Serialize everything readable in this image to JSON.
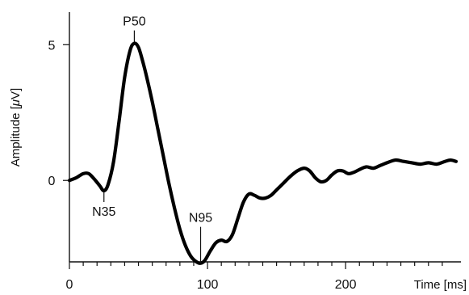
{
  "chart_data": {
    "type": "line",
    "title": "",
    "xlabel": "Time [ms]",
    "ylabel_prefix": "Amplitude [",
    "ylabel_mu": "μ",
    "ylabel_suffix": "V]",
    "xlim": [
      0,
      280
    ],
    "ylim": [
      -3.0,
      6.2
    ],
    "x_ticks": [
      0,
      100,
      200
    ],
    "y_ticks": [
      0,
      5
    ],
    "x_tick_labels": [
      "0",
      "100",
      "200"
    ],
    "y_tick_labels": [
      "0",
      "5"
    ],
    "x_minor_step": 10,
    "grid": false,
    "colors": {
      "series": "#000000",
      "axis": "#111111"
    },
    "series": [
      {
        "x": [
          0,
          5,
          10,
          14,
          18,
          22,
          25,
          28,
          32,
          36,
          40,
          44,
          47,
          50,
          53,
          56,
          60,
          64,
          68,
          72,
          76,
          80,
          84,
          88,
          92,
          95,
          98,
          102,
          106,
          110,
          114,
          118,
          122,
          126,
          130,
          134,
          138,
          142,
          146,
          150,
          155,
          160,
          165,
          170,
          174,
          178,
          182,
          186,
          190,
          194,
          198,
          202,
          206,
          210,
          215,
          220,
          225,
          230,
          236,
          242,
          248,
          254,
          260,
          266,
          272,
          276,
          280
        ],
        "y": [
          0.0,
          0.1,
          0.25,
          0.25,
          0.05,
          -0.2,
          -0.38,
          -0.15,
          0.7,
          2.2,
          3.8,
          4.8,
          5.05,
          4.9,
          4.4,
          3.8,
          2.9,
          1.9,
          0.9,
          -0.1,
          -1.0,
          -1.8,
          -2.4,
          -2.8,
          -3.0,
          -3.05,
          -2.95,
          -2.6,
          -2.3,
          -2.2,
          -2.25,
          -2.0,
          -1.4,
          -0.8,
          -0.5,
          -0.55,
          -0.65,
          -0.65,
          -0.55,
          -0.35,
          -0.1,
          0.15,
          0.35,
          0.45,
          0.35,
          0.1,
          -0.05,
          0.0,
          0.2,
          0.35,
          0.35,
          0.25,
          0.3,
          0.4,
          0.5,
          0.45,
          0.55,
          0.65,
          0.75,
          0.7,
          0.65,
          0.6,
          0.65,
          0.6,
          0.7,
          0.75,
          0.7
        ]
      }
    ],
    "annotations": [
      {
        "label": "P50",
        "x": 47,
        "y": 5.05,
        "position": "above"
      },
      {
        "label": "N35",
        "x": 25,
        "y": -0.38,
        "position": "below"
      },
      {
        "label": "N95",
        "x": 95,
        "y": -3.05,
        "position": "above"
      }
    ]
  }
}
